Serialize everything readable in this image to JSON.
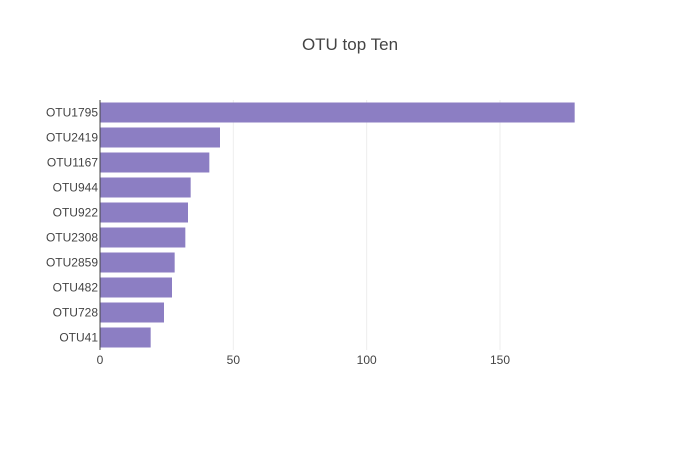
{
  "chart_data": {
    "type": "bar",
    "orientation": "horizontal",
    "title": "OTU top Ten",
    "xlabel": "",
    "ylabel": "",
    "categories": [
      "OTU1795",
      "OTU2419",
      "OTU1167",
      "OTU944",
      "OTU922",
      "OTU2308",
      "OTU2859",
      "OTU482",
      "OTU728",
      "OTU41"
    ],
    "values": [
      178,
      45,
      41,
      34,
      33,
      32,
      28,
      27,
      24,
      19
    ],
    "xlim": [
      0,
      180
    ],
    "xticks": [
      0,
      50,
      100,
      150
    ],
    "xtick_labels": [
      "0",
      "50",
      "100",
      "150"
    ],
    "grid": true,
    "bar_color": "#8c7ec3",
    "grid_color": "#eeeeee",
    "text_color": "#444444"
  }
}
